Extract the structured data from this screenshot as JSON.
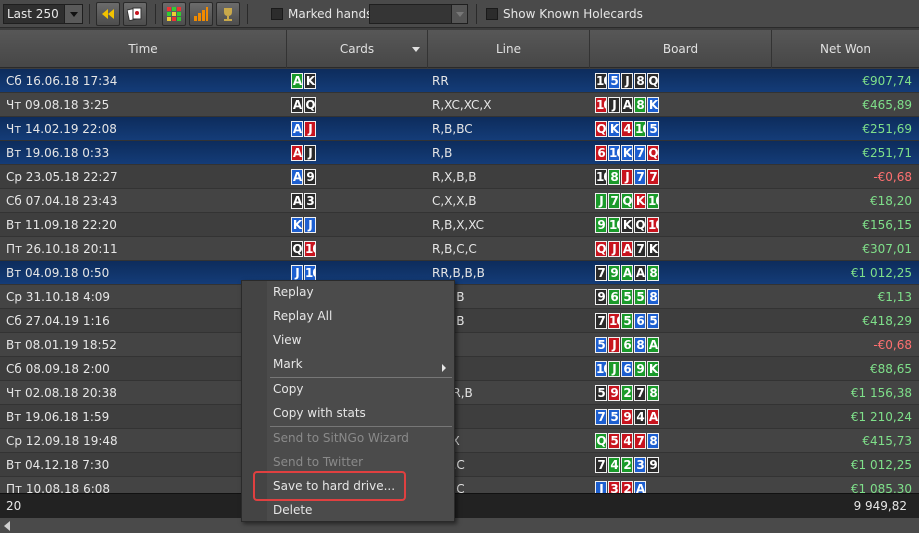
{
  "toolbar": {
    "range_value": "Last 250",
    "marked_hands_label": "Marked hands",
    "marked_hands_value": "",
    "show_known_holecards_label": "Show Known Holecards"
  },
  "columns": {
    "time": "Time",
    "cards": "Cards",
    "line": "Line",
    "board": "Board",
    "net_won": "Net Won"
  },
  "colors": {
    "spades": "#2a2a2a",
    "hearts": "#c8141e",
    "diamonds": "#1d5fd0",
    "clubs": "#1a9a2a",
    "positive": "#7fe08a",
    "negative": "#ff7070",
    "selected_row": "#143c78",
    "menu_highlight_box": "#e04040"
  },
  "rows": [
    {
      "time": "Сб 16.06.18 17:34",
      "cards": [
        [
          "A",
          "c"
        ],
        [
          "K",
          "s"
        ]
      ],
      "line": "RR",
      "board": [
        [
          "10",
          "s"
        ],
        [
          "5",
          "d"
        ],
        [
          "J",
          "s"
        ],
        [
          "8",
          "s"
        ],
        [
          "Q",
          "s"
        ]
      ],
      "net": "€907,74",
      "sign": "pos",
      "selected": true
    },
    {
      "time": "Чт 09.08.18 3:25",
      "cards": [
        [
          "A",
          "s"
        ],
        [
          "Q",
          "s"
        ]
      ],
      "line": "R,XC,XC,X",
      "board": [
        [
          "10",
          "h"
        ],
        [
          "J",
          "s"
        ],
        [
          "A",
          "s"
        ],
        [
          "8",
          "c"
        ],
        [
          "K",
          "d"
        ]
      ],
      "net": "€465,89",
      "sign": "pos",
      "selected": false
    },
    {
      "time": "Чт 14.02.19 22:08",
      "cards": [
        [
          "A",
          "d"
        ],
        [
          "J",
          "h"
        ]
      ],
      "line": "R,B,BC",
      "board": [
        [
          "Q",
          "h"
        ],
        [
          "K",
          "d"
        ],
        [
          "4",
          "h"
        ],
        [
          "10",
          "c"
        ],
        [
          "5",
          "d"
        ]
      ],
      "net": "€251,69",
      "sign": "pos",
      "selected": true
    },
    {
      "time": "Вт 19.06.18 0:33",
      "cards": [
        [
          "A",
          "h"
        ],
        [
          "J",
          "s"
        ]
      ],
      "line": "R,B",
      "board": [
        [
          "6",
          "h"
        ],
        [
          "10",
          "d"
        ],
        [
          "K",
          "d"
        ],
        [
          "7",
          "d"
        ],
        [
          "Q",
          "h"
        ]
      ],
      "net": "€251,71",
      "sign": "pos",
      "selected": true
    },
    {
      "time": "Ср 23.05.18 22:27",
      "cards": [
        [
          "A",
          "d"
        ],
        [
          "9",
          "s"
        ]
      ],
      "line": "R,X,B,B",
      "board": [
        [
          "10",
          "s"
        ],
        [
          "8",
          "c"
        ],
        [
          "J",
          "h"
        ],
        [
          "7",
          "d"
        ],
        [
          "7",
          "h"
        ]
      ],
      "net": "-€0,68",
      "sign": "neg",
      "selected": false
    },
    {
      "time": "Сб 07.04.18 23:43",
      "cards": [
        [
          "A",
          "s"
        ],
        [
          "3",
          "s"
        ]
      ],
      "line": "C,X,X,B",
      "board": [
        [
          "J",
          "c"
        ],
        [
          "7",
          "c"
        ],
        [
          "Q",
          "c"
        ],
        [
          "K",
          "h"
        ],
        [
          "10",
          "c"
        ]
      ],
      "net": "€18,20",
      "sign": "pos",
      "selected": false
    },
    {
      "time": "Вт 11.09.18 22:20",
      "cards": [
        [
          "K",
          "d"
        ],
        [
          "J",
          "d"
        ]
      ],
      "line": "R,B,X,XC",
      "board": [
        [
          "9",
          "c"
        ],
        [
          "10",
          "c"
        ],
        [
          "K",
          "s"
        ],
        [
          "Q",
          "s"
        ],
        [
          "10",
          "h"
        ]
      ],
      "net": "€156,15",
      "sign": "pos",
      "selected": false
    },
    {
      "time": "Пт 26.10.18 20:11",
      "cards": [
        [
          "Q",
          "s"
        ],
        [
          "10",
          "h"
        ]
      ],
      "line": "R,B,C,C",
      "board": [
        [
          "Q",
          "h"
        ],
        [
          "J",
          "h"
        ],
        [
          "A",
          "h"
        ],
        [
          "7",
          "s"
        ],
        [
          "K",
          "s"
        ]
      ],
      "net": "€307,01",
      "sign": "pos",
      "selected": false
    },
    {
      "time": "Вт 04.09.18 0:50",
      "cards": [
        [
          "J",
          "d"
        ],
        [
          "10",
          "d"
        ]
      ],
      "line": "RR,B,B,B",
      "board": [
        [
          "7",
          "s"
        ],
        [
          "9",
          "c"
        ],
        [
          "A",
          "c"
        ],
        [
          "A",
          "s"
        ],
        [
          "8",
          "c"
        ]
      ],
      "net": "€1 012,25",
      "sign": "pos",
      "selected": true
    },
    {
      "time": "Ср 31.10.18 4:09",
      "cards": [
        [
          "",
          ""
        ],
        [
          "",
          ""
        ]
      ],
      "line": "R,B,B",
      "board": [
        [
          "9",
          "s"
        ],
        [
          "6",
          "c"
        ],
        [
          "5",
          "c"
        ],
        [
          "5",
          "c"
        ],
        [
          "8",
          "d"
        ]
      ],
      "net": "€1,13",
      "sign": "pos",
      "selected": false
    },
    {
      "time": "Сб 27.04.19 1:16",
      "cards": [
        [
          "",
          ""
        ],
        [
          "",
          ""
        ]
      ],
      "line": "C,X,B",
      "board": [
        [
          "7",
          "s"
        ],
        [
          "10",
          "h"
        ],
        [
          "5",
          "c"
        ],
        [
          "6",
          "d"
        ],
        [
          "5",
          "d"
        ]
      ],
      "net": "€418,29",
      "sign": "pos",
      "selected": false
    },
    {
      "time": "Вт 08.01.19 18:52",
      "cards": [
        [
          "",
          ""
        ],
        [
          "",
          ""
        ]
      ],
      "line": "BC",
      "board": [
        [
          "5",
          "d"
        ],
        [
          "J",
          "h"
        ],
        [
          "6",
          "c"
        ],
        [
          "8",
          "d"
        ],
        [
          "A",
          "c"
        ]
      ],
      "net": "-€0,68",
      "sign": "neg",
      "selected": false
    },
    {
      "time": "Сб 08.09.18 2:00",
      "cards": [
        [
          "",
          ""
        ],
        [
          "",
          ""
        ]
      ],
      "line": "C,X",
      "board": [
        [
          "10",
          "d"
        ],
        [
          "J",
          "c"
        ],
        [
          "6",
          "d"
        ],
        [
          "9",
          "c"
        ],
        [
          "K",
          "c"
        ]
      ],
      "net": "€88,65",
      "sign": "pos",
      "selected": false
    },
    {
      "time": "Чт 02.08.18 20:38",
      "cards": [
        [
          "",
          ""
        ],
        [
          "",
          ""
        ]
      ],
      "line": "R,XR,B",
      "board": [
        [
          "5",
          "s"
        ],
        [
          "9",
          "h"
        ],
        [
          "2",
          "c"
        ],
        [
          "7",
          "s"
        ],
        [
          "8",
          "c"
        ]
      ],
      "net": "€1 156,38",
      "sign": "pos",
      "selected": false
    },
    {
      "time": "Вт 19.06.18 1:59",
      "cards": [
        [
          "",
          ""
        ],
        [
          "",
          ""
        ]
      ],
      "line": "R,B",
      "board": [
        [
          "7",
          "d"
        ],
        [
          "5",
          "d"
        ],
        [
          "9",
          "h"
        ],
        [
          "4",
          "s"
        ],
        [
          "A",
          "h"
        ]
      ],
      "net": "€1 210,24",
      "sign": "pos",
      "selected": false
    },
    {
      "time": "Ср 12.09.18 19:48",
      "cards": [
        [
          "",
          ""
        ],
        [
          "",
          ""
        ]
      ],
      "line": "XC,X",
      "board": [
        [
          "Q",
          "c"
        ],
        [
          "5",
          "h"
        ],
        [
          "4",
          "h"
        ],
        [
          "7",
          "h"
        ],
        [
          "8",
          "d"
        ]
      ],
      "net": "€415,73",
      "sign": "pos",
      "selected": false
    },
    {
      "time": "Вт 04.12.18 7:30",
      "cards": [
        [
          "",
          ""
        ],
        [
          "",
          ""
        ]
      ],
      "line": "C,C,C",
      "board": [
        [
          "7",
          "s"
        ],
        [
          "4",
          "c"
        ],
        [
          "2",
          "c"
        ],
        [
          "3",
          "d"
        ],
        [
          "9",
          "s"
        ]
      ],
      "net": "€1 012,25",
      "sign": "pos",
      "selected": false
    },
    {
      "time": "Пт 10.08.18 6:08",
      "cards": [
        [
          "",
          ""
        ],
        [
          "",
          ""
        ]
      ],
      "line": "X,C,C",
      "board": [
        [
          "J",
          "d"
        ],
        [
          "3",
          "h"
        ],
        [
          "2",
          "h"
        ],
        [
          "A",
          "d"
        ],
        [
          "",
          ""
        ]
      ],
      "net": "€1 085,30",
      "sign": "pos",
      "selected": false
    }
  ],
  "footer": {
    "count": "20",
    "total": "9 949,82"
  },
  "context_menu": {
    "items": [
      {
        "label": "Replay",
        "enabled": true
      },
      {
        "label": "Replay All",
        "enabled": true
      },
      {
        "label": "View",
        "enabled": true
      },
      {
        "label": "Mark",
        "enabled": true,
        "submenu": true
      },
      {
        "label": "Copy",
        "enabled": true
      },
      {
        "label": "Copy with stats",
        "enabled": true
      },
      {
        "label": "Send to SitNGo Wizard",
        "enabled": false
      },
      {
        "label": "Send to Twitter",
        "enabled": false
      },
      {
        "label": "Save to hard drive...",
        "enabled": true,
        "highlighted": true
      },
      {
        "label": "Delete",
        "enabled": true
      }
    ]
  }
}
